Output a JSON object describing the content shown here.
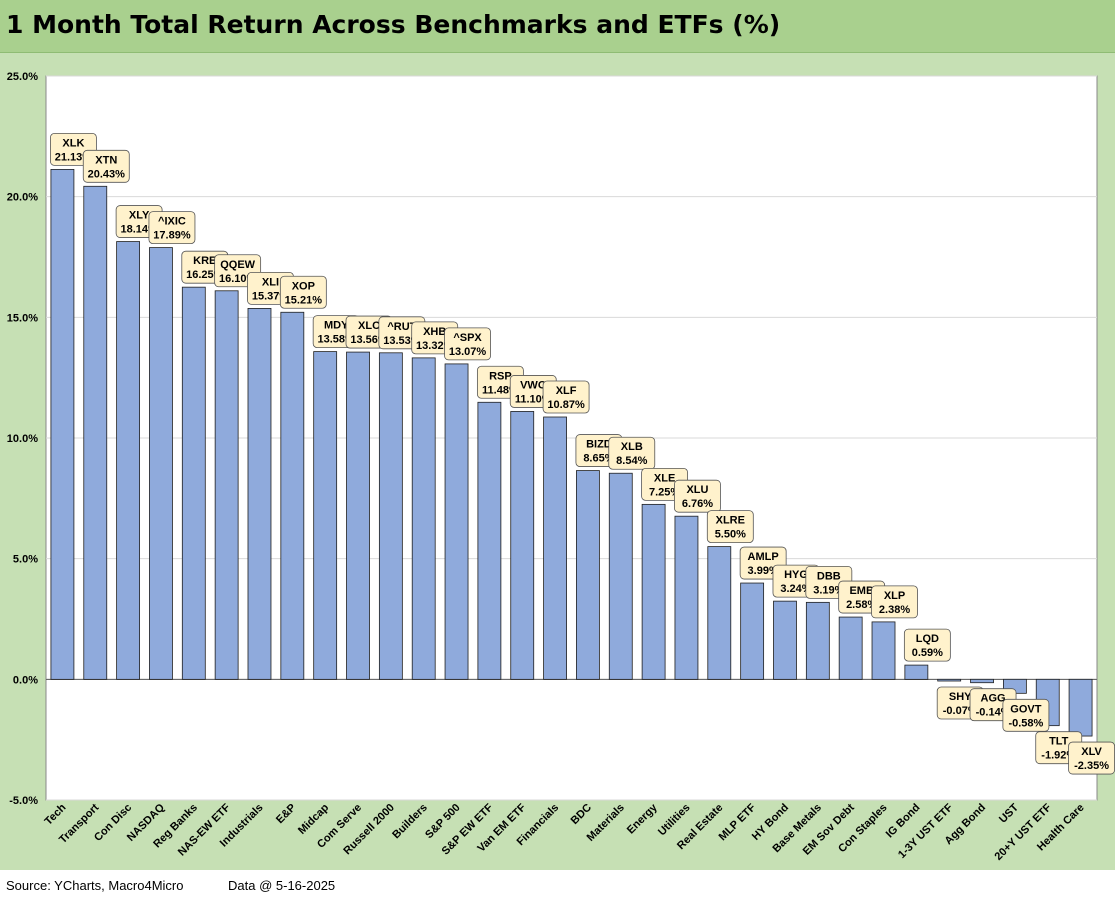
{
  "title": "1 Month Total Return Across Benchmarks and ETFs (%)",
  "footer": {
    "source": "Source: YCharts, Macro4Micro",
    "date": "Data @ 5-16-2025"
  },
  "colors": {
    "title_bg": "#a9d08e",
    "frame_bg": "#c6e0b4",
    "bar_fill": "#8faadc",
    "label_bg": "#fff2cc"
  },
  "chart_data": {
    "type": "bar",
    "title": "1 Month Total Return Across Benchmarks and ETFs (%)",
    "ylim": [
      -5,
      25
    ],
    "yticks": [
      "25.0%",
      "20.0%",
      "15.0%",
      "10.0%",
      "5.0%",
      "0.0%",
      "-5.0%"
    ],
    "grid": true,
    "categories": [
      "Tech",
      "Transport",
      "Con Disc",
      "NASDAQ",
      "Reg Banks",
      "NAS-EW ETF",
      "Industrials",
      "E&P",
      "Midcap",
      "Com Serve",
      "Russell 2000",
      "Builders",
      "S&P 500",
      "S&P EW ETF",
      "Van EM ETF",
      "Financials",
      "BDC",
      "Materials",
      "Energy",
      "Utilities",
      "Real Estate",
      "MLP ETF",
      "HY Bond",
      "Base Metals",
      "EM Sov Debt",
      "Con Staples",
      "IG Bond",
      "1-3Y UST ETF",
      "Agg Bond",
      "UST",
      "20+Y UST ETF",
      "Health Care"
    ],
    "tickers": [
      "XLK",
      "XTN",
      "XLY",
      "^IXIC",
      "KRE",
      "QQEW",
      "XLI",
      "XOP",
      "MDY",
      "XLC",
      "^RUT",
      "XHB",
      "^SPX",
      "RSP",
      "VWO",
      "XLF",
      "BIZD",
      "XLB",
      "XLE",
      "XLU",
      "XLRE",
      "AMLP",
      "HYG",
      "DBB",
      "EMB",
      "XLP",
      "LQD",
      "SHY",
      "AGG",
      "GOVT",
      "TLT",
      "XLV"
    ],
    "value_labels": [
      "21.13%",
      "20.43%",
      "18.14%",
      "17.89%",
      "16.25%",
      "16.10%",
      "15.37%",
      "15.21%",
      "13.58%",
      "13.56%",
      "13.53%",
      "13.32%",
      "13.07%",
      "11.48%",
      "11.10%",
      "10.87%",
      "8.65%",
      "8.54%",
      "7.25%",
      "6.76%",
      "5.50%",
      "3.99%",
      "3.24%",
      "3.19%",
      "2.58%",
      "2.38%",
      "0.59%",
      "-0.07%",
      "-0.14%",
      "-0.58%",
      "-1.92%",
      "-2.35%"
    ],
    "values": [
      21.13,
      20.43,
      18.14,
      17.89,
      16.25,
      16.1,
      15.37,
      15.21,
      13.58,
      13.56,
      13.53,
      13.32,
      13.07,
      11.48,
      11.1,
      10.87,
      8.65,
      8.54,
      7.25,
      6.76,
      5.5,
      3.99,
      3.24,
      3.19,
      2.58,
      2.38,
      0.59,
      -0.07,
      -0.14,
      -0.58,
      -1.92,
      -2.35
    ]
  }
}
